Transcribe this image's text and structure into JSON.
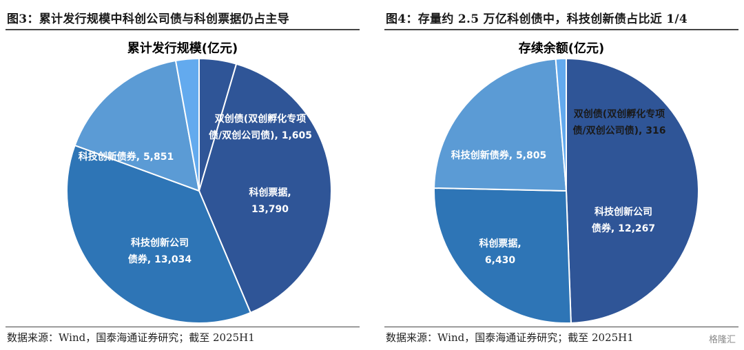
{
  "left": {
    "figure_title": "图3：累计发行规模中科创公司债与科创票据仍占主导",
    "source": "数据来源：Wind，国泰海通证券研究；截至 2025H1"
  },
  "right": {
    "figure_title": "图4：存量约 2.5 万亿科创债中，科技创新债占比近 1/4",
    "source": "数据来源：Wind，国泰海通证券研究；截至 2025H1"
  },
  "watermark": "格隆汇",
  "chart_data": [
    {
      "type": "pie",
      "title": "累计发行规模(亿元)",
      "slices": [
        {
          "label_lines": [
            "双创债(双创孵化专项",
            "债/双创公司债), 1,605"
          ],
          "value": 1605,
          "color": "#2f5597"
        },
        {
          "label_lines": [
            "科创票据,",
            "13,790"
          ],
          "value": 13790,
          "color": "#2f5597"
        },
        {
          "label_lines": [
            "科技创新公司",
            "债券, 13,034"
          ],
          "value": 13034,
          "color": "#2e75b6"
        },
        {
          "label_lines": [
            "科技创新债券, 5,851"
          ],
          "value": 5851,
          "color": "#5b9bd5"
        },
        {
          "label_lines": [],
          "value": 1000,
          "color": "#63aaee"
        }
      ]
    },
    {
      "type": "pie",
      "title": "存续余额(亿元)",
      "slices": [
        {
          "label_lines": [
            "科技创新公司",
            "债券, 12,267"
          ],
          "value": 12267,
          "color": "#2f5597"
        },
        {
          "label_lines": [
            "科创票据,",
            "6,430"
          ],
          "value": 6430,
          "color": "#2e75b6"
        },
        {
          "label_lines": [
            "科技创新债券, 5,805"
          ],
          "value": 5805,
          "color": "#5b9bd5"
        },
        {
          "label_lines": [
            "双创债(双创孵化专项",
            "债/双创公司债), 316"
          ],
          "value": 316,
          "color": "#63aaee"
        }
      ]
    }
  ]
}
